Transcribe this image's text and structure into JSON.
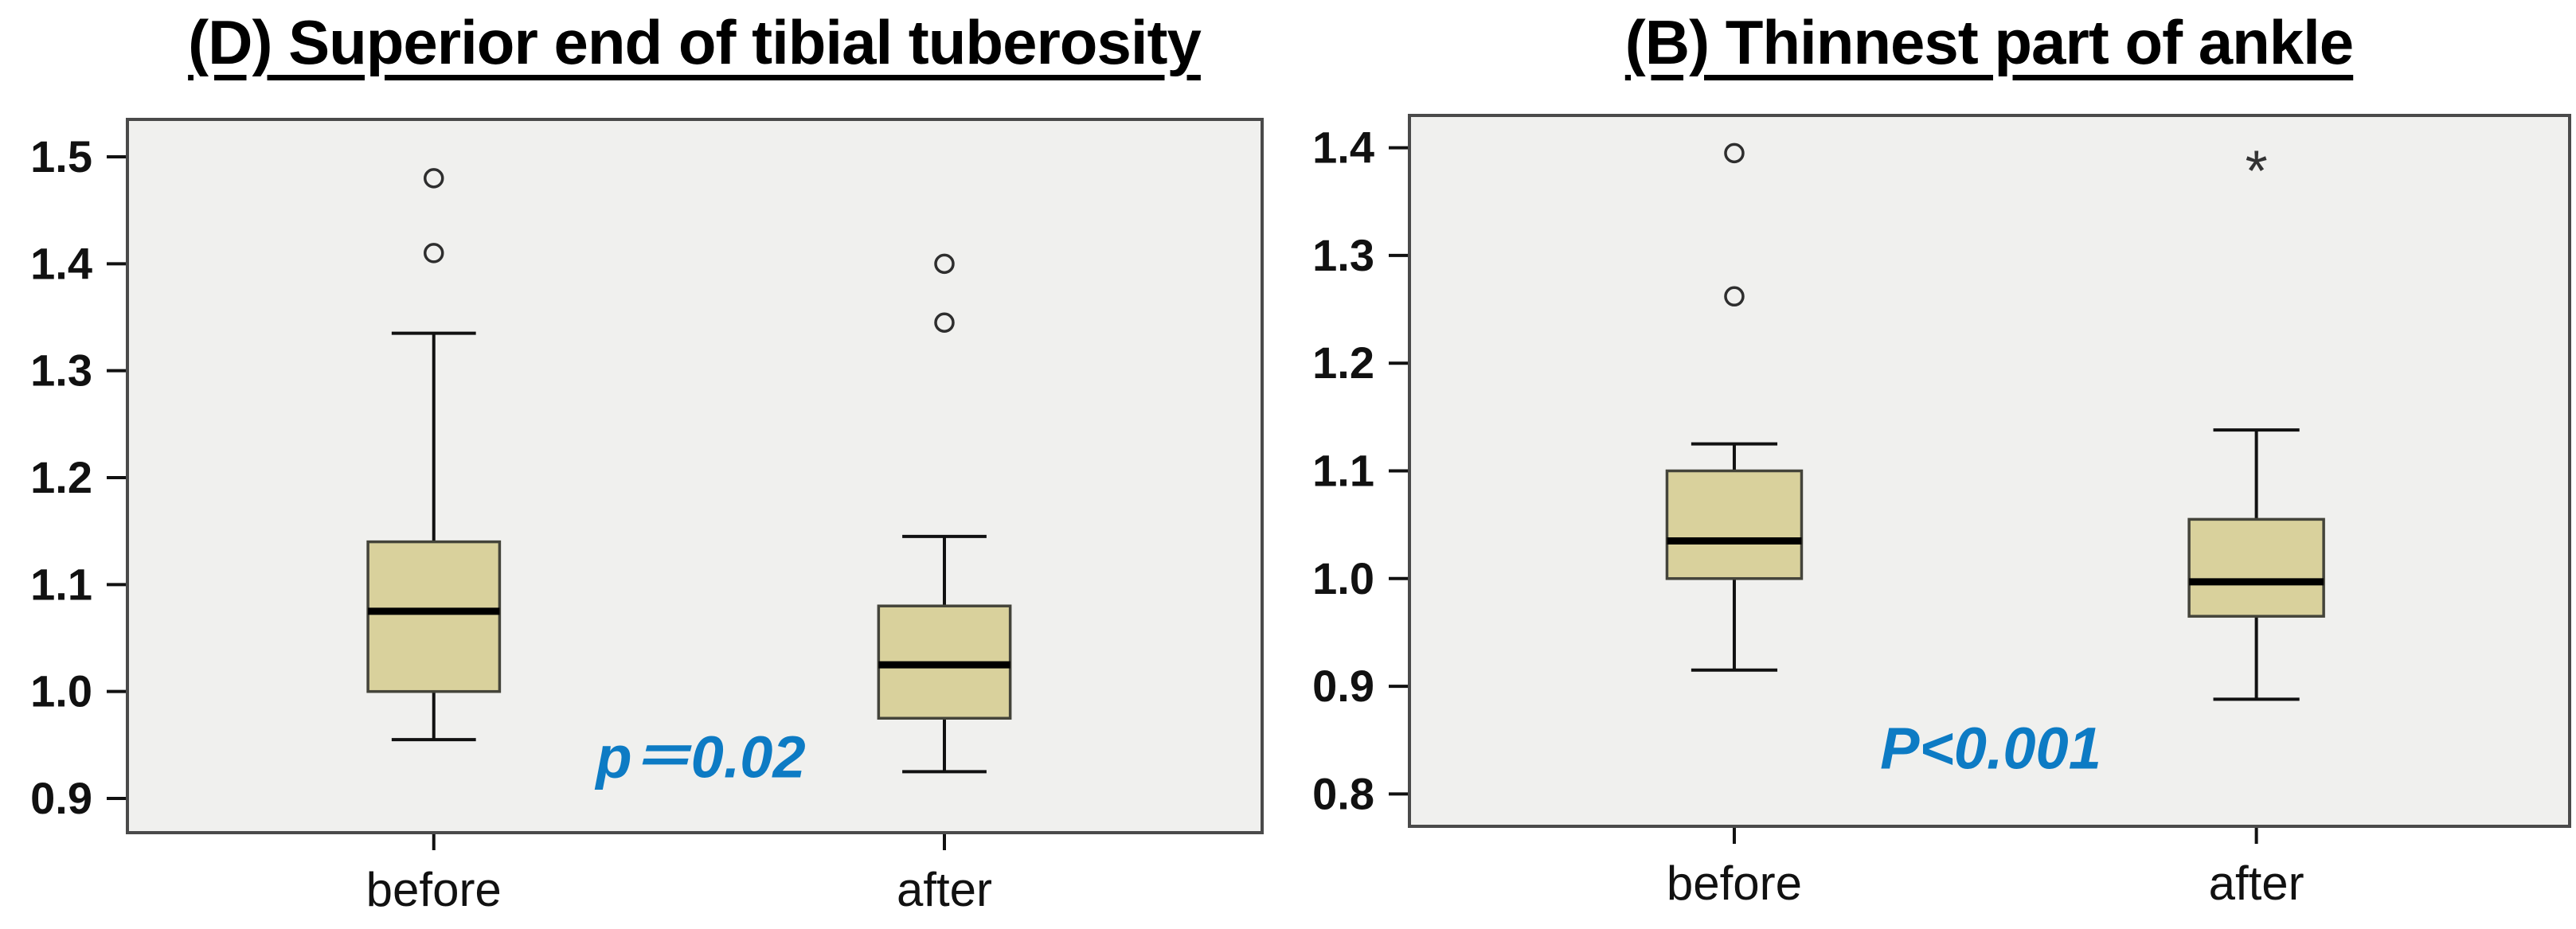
{
  "figure": {
    "background": "#ffffff"
  },
  "colors": {
    "box_fill": "#d9d19c",
    "box_border": "#44443a",
    "median_line": "#000000",
    "whisker": "#111111",
    "plot_bg": "#f0f0ee",
    "plot_border": "#4a4a4a",
    "outlier_stroke": "#2e2e2e",
    "p_value_blue": "#0d7bc4",
    "axis_text": "#111111",
    "title_text": "#000000"
  },
  "chart_data": [
    {
      "type": "boxplot",
      "panel": "left",
      "title": "(D) Superior end of tibial tuberosity",
      "categories": [
        "before",
        "after"
      ],
      "xlabel": "",
      "ylabel": "",
      "ylim": [
        0.868,
        1.535
      ],
      "y_ticks": [
        1.5,
        1.4,
        1.3,
        1.2,
        1.1,
        1.0,
        0.9
      ],
      "y_tick_labels": [
        "1.5",
        "1.4",
        "1.3",
        "1.2",
        "1.1",
        "1.0",
        "0.9"
      ],
      "grid": false,
      "legend": false,
      "annotation": {
        "text": "p＝0.02",
        "color": "#0d7bc4"
      },
      "series": [
        {
          "name": "before",
          "whisker_low": 0.955,
          "q1": 1.0,
          "median": 1.075,
          "q3": 1.14,
          "whisker_high": 1.335,
          "outliers": [
            {
              "value": 1.41,
              "marker": "circle"
            },
            {
              "value": 1.48,
              "marker": "circle"
            }
          ]
        },
        {
          "name": "after",
          "whisker_low": 0.925,
          "q1": 0.975,
          "median": 1.025,
          "q3": 1.08,
          "whisker_high": 1.145,
          "outliers": [
            {
              "value": 1.345,
              "marker": "circle"
            },
            {
              "value": 1.4,
              "marker": "circle"
            }
          ]
        }
      ]
    },
    {
      "type": "boxplot",
      "panel": "right",
      "title": "(B) Thinnest part of ankle",
      "categories": [
        "before",
        "after"
      ],
      "xlabel": "",
      "ylabel": "",
      "ylim": [
        0.77,
        1.43
      ],
      "y_ticks": [
        1.4,
        1.3,
        1.2,
        1.1,
        1.0,
        0.9,
        0.8
      ],
      "y_tick_labels": [
        "1.4",
        "1.3",
        "1.2",
        "1.1",
        "1.0",
        "0.9",
        "0.8"
      ],
      "grid": false,
      "legend": false,
      "annotation": {
        "text": "P<0.001",
        "color": "#0d7bc4"
      },
      "series": [
        {
          "name": "before",
          "whisker_low": 0.915,
          "q1": 1.0,
          "median": 1.035,
          "q3": 1.1,
          "whisker_high": 1.125,
          "outliers": [
            {
              "value": 1.262,
              "marker": "circle"
            },
            {
              "value": 1.395,
              "marker": "circle"
            }
          ]
        },
        {
          "name": "after",
          "whisker_low": 0.888,
          "q1": 0.965,
          "median": 0.997,
          "q3": 1.055,
          "whisker_high": 1.138,
          "outliers": [
            {
              "value": 1.378,
              "marker": "star"
            }
          ]
        }
      ]
    }
  ]
}
